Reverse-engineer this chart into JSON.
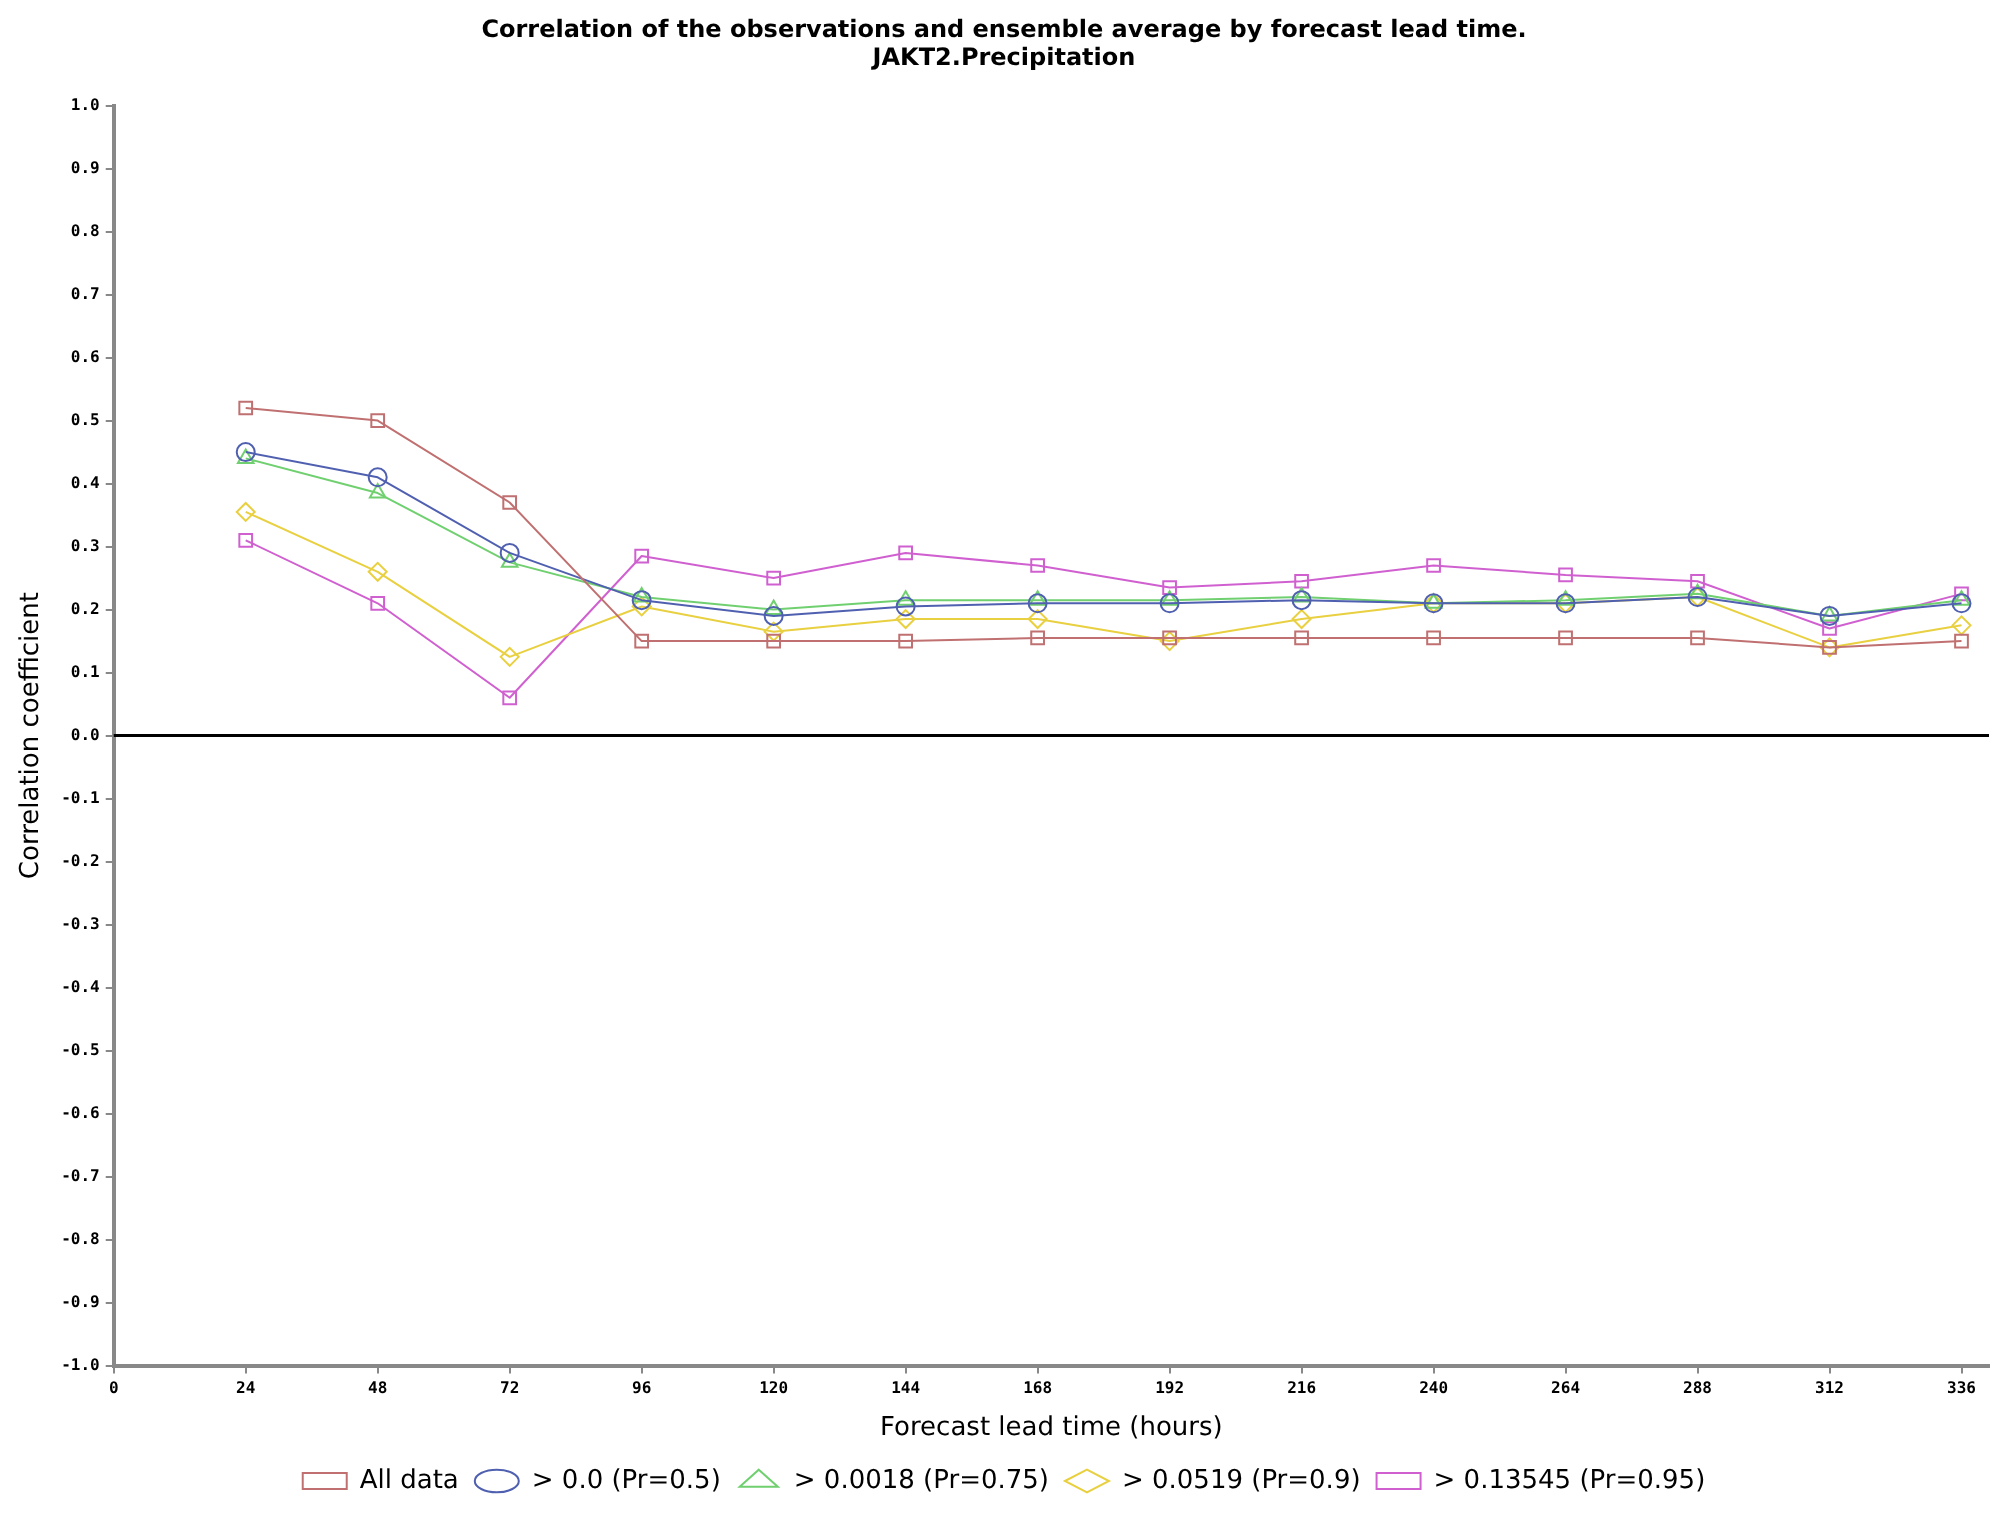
{
  "chart_data": {
    "type": "line",
    "title": "Correlation of the observations and ensemble average by forecast lead time.",
    "subtitle": "JAKT2.Precipitation",
    "xlabel": "Forecast lead time (hours)",
    "ylabel": "Correlation coefficient",
    "x": [
      24,
      48,
      72,
      96,
      120,
      144,
      168,
      192,
      216,
      240,
      264,
      288,
      312,
      336
    ],
    "series": [
      {
        "name": "All data",
        "color": "#c07070",
        "marker": "square",
        "values": [
          0.52,
          0.5,
          0.37,
          0.15,
          0.15,
          0.15,
          0.155,
          0.155,
          0.155,
          0.155,
          0.155,
          0.155,
          0.14,
          0.15
        ]
      },
      {
        "name": "> 0.0 (Pr=0.5)",
        "color": "#5060b0",
        "marker": "circle",
        "values": [
          0.45,
          0.41,
          0.29,
          0.215,
          0.19,
          0.205,
          0.21,
          0.21,
          0.215,
          0.21,
          0.21,
          0.22,
          0.19,
          0.21
        ]
      },
      {
        "name": "> 0.0018 (Pr=0.75)",
        "color": "#70d070",
        "marker": "triangle",
        "values": [
          0.44,
          0.385,
          0.275,
          0.22,
          0.2,
          0.215,
          0.215,
          0.215,
          0.22,
          0.21,
          0.215,
          0.225,
          0.19,
          0.215
        ]
      },
      {
        "name": "> 0.0519 (Pr=0.9)",
        "color": "#e8d040",
        "marker": "diamond",
        "values": [
          0.355,
          0.26,
          0.125,
          0.205,
          0.165,
          0.185,
          0.185,
          0.15,
          0.185,
          0.21,
          0.21,
          0.22,
          0.14,
          0.175
        ]
      },
      {
        "name": "> 0.13545 (Pr=0.95)",
        "color": "#d060d0",
        "marker": "square",
        "values": [
          0.31,
          0.21,
          0.06,
          0.285,
          0.25,
          0.29,
          0.27,
          0.235,
          0.245,
          0.27,
          0.255,
          0.245,
          0.17,
          0.225
        ]
      }
    ],
    "xlim": [
      0,
      341
    ],
    "xticks": [
      0,
      24,
      48,
      72,
      96,
      120,
      144,
      168,
      192,
      216,
      240,
      264,
      288,
      312,
      336
    ],
    "ylim": [
      -1,
      1
    ],
    "yticks": [
      {
        "value": -1,
        "label": "-1.0"
      },
      {
        "value": -0.9,
        "label": "-0.9"
      },
      {
        "value": -0.8,
        "label": "-0.8"
      },
      {
        "value": -0.7,
        "label": "-0.7"
      },
      {
        "value": -0.6,
        "label": "-0.6"
      },
      {
        "value": -0.5,
        "label": "-0.5"
      },
      {
        "value": -0.4,
        "label": "-0.4"
      },
      {
        "value": -0.3,
        "label": "-0.3"
      },
      {
        "value": -0.2,
        "label": "-0.2"
      },
      {
        "value": -0.1,
        "label": "-0.1"
      },
      {
        "value": 0,
        "label": "0.0"
      },
      {
        "value": 0.1,
        "label": "0.1"
      },
      {
        "value": 0.2,
        "label": "0.2"
      },
      {
        "value": 0.3,
        "label": "0.3"
      },
      {
        "value": 0.4,
        "label": "0.4"
      },
      {
        "value": 0.5,
        "label": "0.5"
      },
      {
        "value": 0.6,
        "label": "0.6"
      },
      {
        "value": 0.7,
        "label": "0.7"
      },
      {
        "value": 0.8,
        "label": "0.8"
      },
      {
        "value": 0.9,
        "label": "0.9"
      },
      {
        "value": 1,
        "label": "1.0"
      }
    ],
    "ref_lines": [
      {
        "axis": "y",
        "value": 0,
        "color": "#000000"
      }
    ],
    "grid": false,
    "legend": "bottom",
    "line_style": "solid"
  }
}
